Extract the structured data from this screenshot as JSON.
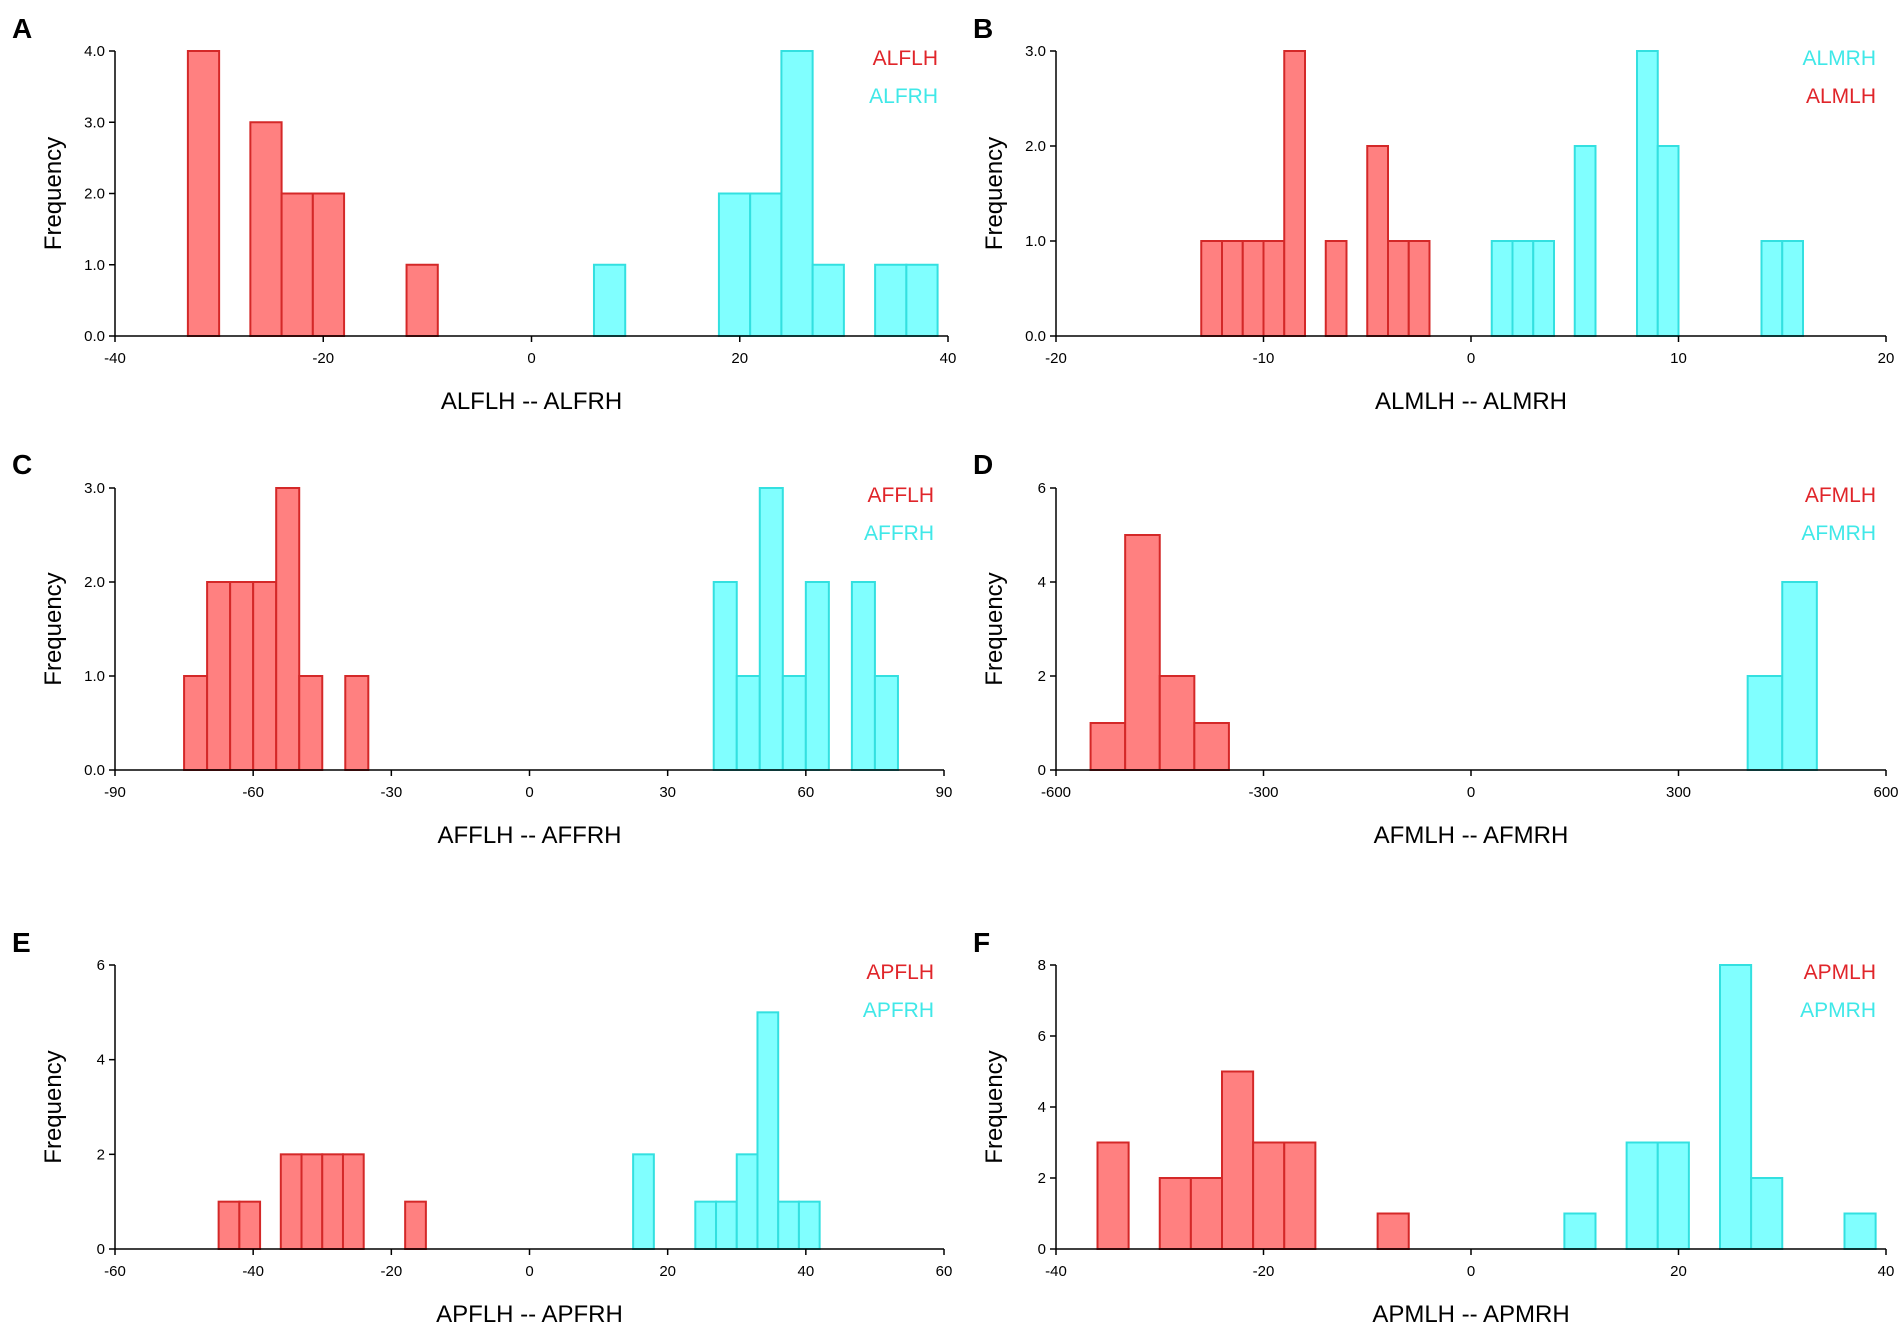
{
  "colors": {
    "red_fill": "#ff8080",
    "red_stroke": "#d42828",
    "red_text": "#e0252a",
    "cyan_fill": "#80ffff",
    "cyan_stroke": "#33e0e0",
    "cyan_text": "#40e8e8",
    "axis": "#000000"
  },
  "chart_data": [
    {
      "id": "A",
      "type": "bar",
      "panel_label": "A",
      "xlabel": "ALFLH -- ALFRH",
      "ylabel": "Frequency",
      "xlim": [
        -40,
        40
      ],
      "xticks": [
        -40,
        -20,
        0,
        20,
        40
      ],
      "xtick_labels": [
        "-40",
        "-20",
        "0",
        "20",
        "40"
      ],
      "ylim": [
        0,
        4
      ],
      "yticks": [
        0,
        1,
        2,
        3,
        4
      ],
      "ytick_labels": [
        "0.0",
        "1.0",
        "2.0",
        "3.0",
        "4.0"
      ],
      "bin_width": 3,
      "legend": [
        {
          "label": "ALFLH",
          "color": "red"
        },
        {
          "label": "ALFRH",
          "color": "cyan"
        }
      ],
      "series": [
        {
          "name": "ALFLH",
          "color": "red",
          "bins": [
            [
              -33,
              4
            ],
            [
              -27,
              3
            ],
            [
              -24,
              2
            ],
            [
              -21,
              2
            ],
            [
              -12,
              1
            ]
          ]
        },
        {
          "name": "ALFRH",
          "color": "cyan",
          "bins": [
            [
              6,
              1
            ],
            [
              18,
              2
            ],
            [
              21,
              2
            ],
            [
              24,
              4
            ],
            [
              27,
              1
            ],
            [
              33,
              1
            ],
            [
              36,
              1
            ]
          ]
        }
      ]
    },
    {
      "id": "B",
      "type": "bar",
      "panel_label": "B",
      "xlabel": "ALMLH -- ALMRH",
      "ylabel": "Frequency",
      "xlim": [
        -20,
        20
      ],
      "xticks": [
        -20,
        -10,
        0,
        10,
        20
      ],
      "xtick_labels": [
        "-20",
        "-10",
        "0",
        "10",
        "20"
      ],
      "ylim": [
        0,
        3
      ],
      "yticks": [
        0,
        1,
        2,
        3
      ],
      "ytick_labels": [
        "0.0",
        "1.0",
        "2.0",
        "3.0"
      ],
      "bin_width": 1,
      "legend": [
        {
          "label": "ALMRH",
          "color": "cyan"
        },
        {
          "label": "ALMLH",
          "color": "red"
        }
      ],
      "series": [
        {
          "name": "ALMLH",
          "color": "red",
          "bins": [
            [
              -13,
              1
            ],
            [
              -12,
              1
            ],
            [
              -11,
              1
            ],
            [
              -10,
              1
            ],
            [
              -9,
              3
            ],
            [
              -7,
              1
            ],
            [
              -5,
              2
            ],
            [
              -4,
              1
            ],
            [
              -3,
              1
            ]
          ]
        },
        {
          "name": "ALMRH",
          "color": "cyan",
          "bins": [
            [
              1,
              1
            ],
            [
              2,
              1
            ],
            [
              3,
              1
            ],
            [
              5,
              2
            ],
            [
              8,
              3
            ],
            [
              9,
              2
            ],
            [
              14,
              1
            ],
            [
              15,
              1
            ]
          ]
        }
      ]
    },
    {
      "id": "C",
      "type": "bar",
      "panel_label": "C",
      "xlabel": "AFFLH -- AFFRH",
      "ylabel": "Frequency",
      "xlim": [
        -90,
        90
      ],
      "xticks": [
        -90,
        -60,
        -30,
        0,
        30,
        60,
        90
      ],
      "xtick_labels": [
        "-90",
        "-60",
        "-30",
        "0",
        "30",
        "60",
        "90"
      ],
      "ylim": [
        0,
        3
      ],
      "yticks": [
        0,
        1,
        2,
        3
      ],
      "ytick_labels": [
        "0.0",
        "1.0",
        "2.0",
        "3.0"
      ],
      "bin_width": 5,
      "legend": [
        {
          "label": "AFFLH",
          "color": "red"
        },
        {
          "label": "AFFRH",
          "color": "cyan"
        }
      ],
      "series": [
        {
          "name": "AFFLH",
          "color": "red",
          "bins": [
            [
              -75,
              1
            ],
            [
              -70,
              2
            ],
            [
              -65,
              2
            ],
            [
              -60,
              2
            ],
            [
              -55,
              3
            ],
            [
              -50,
              1
            ],
            [
              -40,
              1
            ]
          ]
        },
        {
          "name": "AFFRH",
          "color": "cyan",
          "bins": [
            [
              40,
              2
            ],
            [
              45,
              1
            ],
            [
              50,
              3
            ],
            [
              55,
              1
            ],
            [
              60,
              2
            ],
            [
              70,
              2
            ],
            [
              75,
              1
            ]
          ]
        }
      ]
    },
    {
      "id": "D",
      "type": "bar",
      "panel_label": "D",
      "xlabel": "AFMLH -- AFMRH",
      "ylabel": "Frequency",
      "xlim": [
        -600,
        600
      ],
      "xticks": [
        -600,
        -300,
        0,
        300,
        600
      ],
      "xtick_labels": [
        "-600",
        "-300",
        "0",
        "300",
        "600"
      ],
      "ylim": [
        0,
        6
      ],
      "yticks": [
        0,
        2,
        4,
        6
      ],
      "ytick_labels": [
        "0",
        "2",
        "4",
        "6"
      ],
      "bin_width": 50,
      "legend": [
        {
          "label": "AFMLH",
          "color": "red"
        },
        {
          "label": "AFMRH",
          "color": "cyan"
        }
      ],
      "series": [
        {
          "name": "AFMLH",
          "color": "red",
          "bins": [
            [
              -550,
              1
            ],
            [
              -500,
              5
            ],
            [
              -450,
              2
            ],
            [
              -400,
              1
            ]
          ]
        },
        {
          "name": "AFMRH",
          "color": "cyan",
          "bins": [
            [
              400,
              2
            ],
            [
              450,
              4
            ]
          ]
        }
      ]
    },
    {
      "id": "E",
      "type": "bar",
      "panel_label": "E",
      "xlabel": "APFLH -- APFRH",
      "ylabel": "Frequency",
      "xlim": [
        -60,
        60
      ],
      "xticks": [
        -60,
        -40,
        -20,
        0,
        20,
        40,
        60
      ],
      "xtick_labels": [
        "-60",
        "-40",
        "-20",
        "0",
        "20",
        "40",
        "60"
      ],
      "ylim": [
        0,
        6
      ],
      "yticks": [
        0,
        2,
        4,
        6
      ],
      "ytick_labels": [
        "0",
        "2",
        "4",
        "6"
      ],
      "bin_width": 3,
      "legend": [
        {
          "label": "APFLH",
          "color": "red"
        },
        {
          "label": "APFRH",
          "color": "cyan"
        }
      ],
      "series": [
        {
          "name": "APFLH",
          "color": "red",
          "bins": [
            [
              -45,
              1
            ],
            [
              -42,
              1
            ],
            [
              -36,
              2
            ],
            [
              -33,
              2
            ],
            [
              -30,
              2
            ],
            [
              -27,
              2
            ],
            [
              -18,
              1
            ]
          ]
        },
        {
          "name": "APFRH",
          "color": "cyan",
          "bins": [
            [
              15,
              2
            ],
            [
              24,
              1
            ],
            [
              27,
              1
            ],
            [
              30,
              2
            ],
            [
              33,
              5
            ],
            [
              36,
              1
            ],
            [
              39,
              1
            ]
          ]
        }
      ]
    },
    {
      "id": "F",
      "type": "bar",
      "panel_label": "F",
      "xlabel": "APMLH -- APMRH",
      "ylabel": "Frequency",
      "xlim": [
        -40,
        40
      ],
      "xticks": [
        -40,
        -20,
        0,
        20,
        40
      ],
      "xtick_labels": [
        "-40",
        "-20",
        "0",
        "20",
        "40"
      ],
      "ylim": [
        0,
        8
      ],
      "yticks": [
        0,
        2,
        4,
        6,
        8
      ],
      "ytick_labels": [
        "0",
        "2",
        "4",
        "6",
        "8"
      ],
      "bin_width": 3,
      "legend": [
        {
          "label": "APMLH",
          "color": "red"
        },
        {
          "label": "APMRH",
          "color": "cyan"
        }
      ],
      "series": [
        {
          "name": "APMLH",
          "color": "red",
          "bins": [
            [
              -36,
              3
            ],
            [
              -30,
              2
            ],
            [
              -27,
              2
            ],
            [
              -24,
              5
            ],
            [
              -21,
              3
            ],
            [
              -18,
              3
            ],
            [
              -9,
              1
            ]
          ]
        },
        {
          "name": "APMRH",
          "color": "cyan",
          "bins": [
            [
              9,
              1
            ],
            [
              15,
              3
            ],
            [
              18,
              3
            ],
            [
              24,
              8
            ],
            [
              27,
              2
            ],
            [
              36,
              1
            ]
          ]
        }
      ]
    }
  ]
}
